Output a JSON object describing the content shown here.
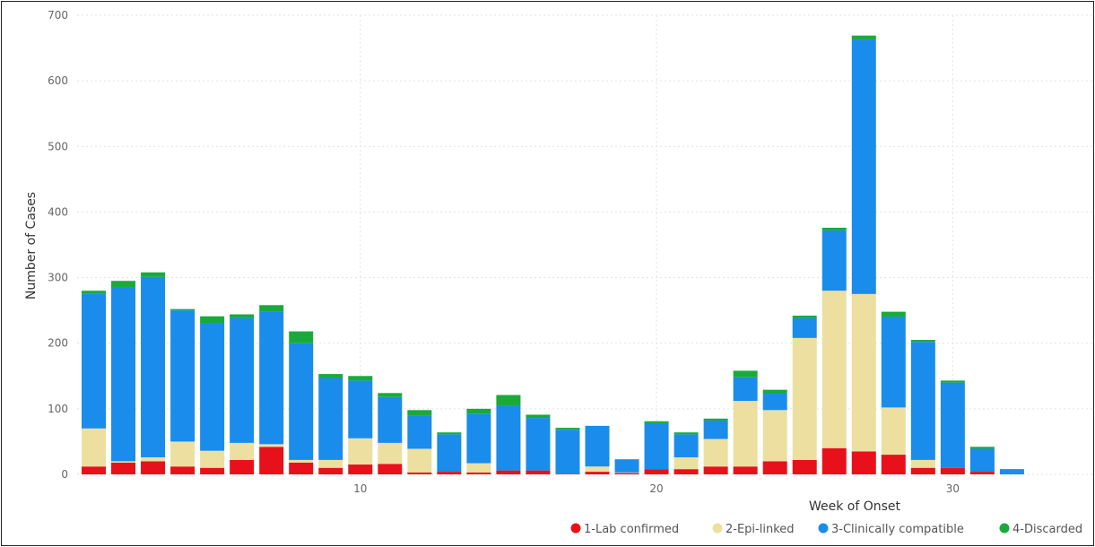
{
  "chart_data": {
    "type": "bar",
    "stacked": true,
    "xlabel": "Week of Onset",
    "ylabel": "Number of Cases",
    "ylim": [
      0,
      700
    ],
    "yticks": [
      0,
      100,
      200,
      300,
      400,
      500,
      600,
      700
    ],
    "xticks": [
      10,
      20,
      30
    ],
    "x": [
      1,
      2,
      3,
      4,
      5,
      6,
      7,
      8,
      9,
      10,
      11,
      12,
      13,
      14,
      15,
      16,
      17,
      18,
      19,
      20,
      21,
      22,
      23,
      24,
      25,
      26,
      27,
      28,
      29,
      30,
      31,
      32
    ],
    "grid": true,
    "legend_position": "bottom-right",
    "series": [
      {
        "name": "1-Lab confirmed",
        "color": "#e8111b",
        "values": [
          12,
          18,
          20,
          12,
          10,
          22,
          42,
          18,
          10,
          15,
          16,
          3,
          4,
          3,
          6,
          6,
          1,
          4,
          2,
          8,
          8,
          12,
          12,
          20,
          22,
          40,
          35,
          30,
          10,
          10,
          4,
          0
        ]
      },
      {
        "name": "2-Epi-linked",
        "color": "#ecdfa0",
        "values": [
          58,
          2,
          6,
          38,
          26,
          26,
          4,
          4,
          12,
          40,
          32,
          36,
          0,
          14,
          0,
          0,
          0,
          8,
          1,
          0,
          18,
          42,
          100,
          78,
          186,
          240,
          240,
          72,
          12,
          0,
          0,
          0
        ]
      },
      {
        "name": "3-Clinically compatible",
        "color": "#1a8cec",
        "values": [
          205,
          265,
          275,
          200,
          195,
          190,
          202,
          178,
          125,
          88,
          70,
          50,
          57,
          75,
          98,
          80,
          67,
          62,
          20,
          70,
          35,
          28,
          36,
          25,
          30,
          92,
          388,
          138,
          180,
          130,
          35,
          8
        ]
      },
      {
        "name": "4-Discarded",
        "color": "#1aaa3c",
        "values": [
          5,
          10,
          7,
          2,
          10,
          6,
          10,
          18,
          6,
          7,
          6,
          9,
          3,
          8,
          17,
          5,
          3,
          0,
          0,
          3,
          3,
          3,
          10,
          6,
          4,
          4,
          6,
          8,
          3,
          3,
          3,
          0
        ]
      }
    ]
  }
}
